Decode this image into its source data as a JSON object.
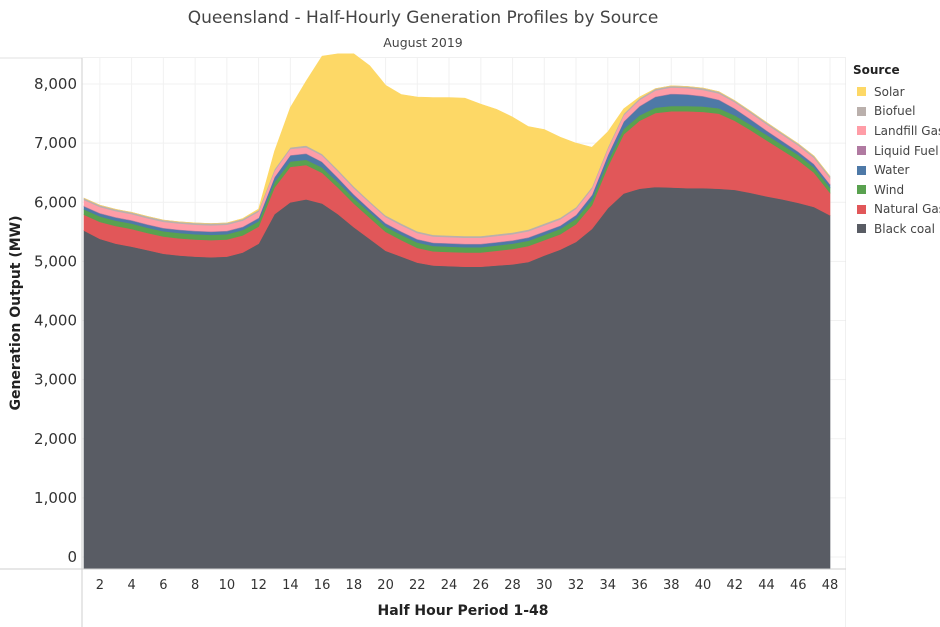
{
  "chart_data": {
    "type": "area",
    "stacked": true,
    "title": "Queensland - Half-Hourly Generation Profiles by Source",
    "subtitle": "August 2019",
    "xlabel": "Half Hour Period 1-48",
    "ylabel": "Generation Output (MW)",
    "ylim": [
      0,
      8300
    ],
    "xlim": [
      1,
      48
    ],
    "yticks": [
      0,
      1000,
      2000,
      3000,
      4000,
      5000,
      6000,
      7000,
      8000
    ],
    "ytick_labels": [
      "0",
      "1,000",
      "2,000",
      "3,000",
      "4,000",
      "5,000",
      "6,000",
      "7,000",
      "8,000"
    ],
    "xticks": [
      2,
      4,
      6,
      8,
      10,
      12,
      14,
      16,
      18,
      20,
      22,
      24,
      26,
      28,
      30,
      32,
      34,
      36,
      38,
      40,
      42,
      44,
      46,
      48
    ],
    "xtick_labels": [
      "2",
      "4",
      "6",
      "8",
      "10",
      "12",
      "14",
      "16",
      "18",
      "20",
      "22",
      "24",
      "26",
      "28",
      "30",
      "32",
      "34",
      "36",
      "38",
      "40",
      "42",
      "44",
      "46",
      "48"
    ],
    "x": [
      1,
      2,
      3,
      4,
      5,
      6,
      7,
      8,
      9,
      10,
      11,
      12,
      13,
      14,
      15,
      16,
      17,
      18,
      19,
      20,
      21,
      22,
      23,
      24,
      25,
      26,
      27,
      28,
      29,
      30,
      31,
      32,
      33,
      34,
      35,
      36,
      37,
      38,
      39,
      40,
      41,
      42,
      43,
      44,
      45,
      46,
      47,
      48
    ],
    "legend_title": "Source",
    "legend_position": "right",
    "series": [
      {
        "name": "Black coal",
        "color": "#595c64",
        "values": [
          5520,
          5380,
          5300,
          5250,
          5190,
          5130,
          5100,
          5080,
          5070,
          5080,
          5150,
          5300,
          5800,
          6000,
          6050,
          5980,
          5800,
          5580,
          5380,
          5180,
          5080,
          4980,
          4930,
          4920,
          4910,
          4910,
          4930,
          4950,
          4990,
          5100,
          5200,
          5330,
          5550,
          5900,
          6150,
          6230,
          6260,
          6250,
          6240,
          6240,
          6230,
          6210,
          6160,
          6100,
          6050,
          5990,
          5920,
          5780
        ]
      },
      {
        "name": "Natural Gas",
        "color": "#e15759",
        "values": [
          270,
          290,
          300,
          300,
          290,
          290,
          290,
          290,
          290,
          290,
          290,
          290,
          450,
          600,
          580,
          520,
          450,
          400,
          360,
          320,
          280,
          250,
          240,
          240,
          240,
          240,
          250,
          260,
          270,
          260,
          260,
          300,
          400,
          700,
          1000,
          1150,
          1250,
          1290,
          1300,
          1290,
          1270,
          1170,
          1060,
          950,
          830,
          720,
          580,
          380
        ]
      },
      {
        "name": "Wind",
        "color": "#59a14f",
        "values": [
          90,
          90,
          90,
          90,
          90,
          90,
          90,
          90,
          90,
          90,
          90,
          90,
          90,
          90,
          90,
          90,
          90,
          90,
          90,
          90,
          90,
          90,
          90,
          90,
          90,
          90,
          90,
          90,
          90,
          90,
          90,
          90,
          90,
          90,
          90,
          90,
          90,
          90,
          90,
          90,
          90,
          90,
          90,
          90,
          90,
          90,
          90,
          90
        ]
      },
      {
        "name": "Water",
        "color": "#4e79a7",
        "values": [
          50,
          50,
          50,
          50,
          50,
          50,
          50,
          50,
          50,
          50,
          50,
          50,
          80,
          100,
          100,
          90,
          70,
          60,
          50,
          50,
          50,
          50,
          50,
          50,
          50,
          50,
          50,
          50,
          50,
          50,
          50,
          60,
          80,
          100,
          120,
          150,
          180,
          200,
          190,
          170,
          140,
          110,
          90,
          70,
          60,
          50,
          50,
          50
        ]
      },
      {
        "name": "Liquid Fuel",
        "color": "#b07aa1",
        "values": [
          10,
          10,
          10,
          10,
          10,
          10,
          10,
          10,
          10,
          10,
          10,
          10,
          10,
          10,
          10,
          10,
          10,
          10,
          10,
          10,
          10,
          10,
          10,
          10,
          10,
          10,
          10,
          10,
          10,
          10,
          10,
          10,
          10,
          10,
          10,
          10,
          10,
          10,
          10,
          10,
          10,
          10,
          10,
          10,
          10,
          10,
          10,
          10
        ]
      },
      {
        "name": "Landfill Gas",
        "color": "#ff9da7",
        "values": [
          100,
          100,
          100,
          100,
          100,
          100,
          100,
          100,
          100,
          100,
          100,
          100,
          100,
          100,
          100,
          100,
          100,
          100,
          100,
          100,
          100,
          100,
          100,
          100,
          100,
          100,
          100,
          100,
          100,
          100,
          100,
          100,
          100,
          100,
          100,
          100,
          100,
          100,
          100,
          100,
          100,
          100,
          100,
          100,
          100,
          100,
          100,
          100
        ]
      },
      {
        "name": "Biofuel",
        "color": "#bab0ac",
        "values": [
          30,
          30,
          30,
          30,
          30,
          30,
          30,
          30,
          30,
          30,
          30,
          30,
          30,
          30,
          30,
          30,
          30,
          30,
          30,
          30,
          30,
          30,
          30,
          30,
          30,
          30,
          30,
          30,
          30,
          30,
          30,
          30,
          30,
          30,
          30,
          30,
          30,
          30,
          30,
          30,
          30,
          30,
          30,
          30,
          30,
          30,
          30,
          30
        ]
      },
      {
        "name": "Solar",
        "color": "#fdd866",
        "values": [
          0,
          0,
          0,
          0,
          0,
          0,
          0,
          0,
          0,
          0,
          5,
          15,
          300,
          670,
          1090,
          1650,
          1960,
          2240,
          2290,
          2200,
          2180,
          2270,
          2320,
          2330,
          2330,
          2230,
          2110,
          1950,
          1740,
          1590,
          1360,
          1080,
          670,
          260,
          80,
          20,
          0,
          0,
          0,
          0,
          0,
          0,
          0,
          0,
          0,
          0,
          0,
          0
        ]
      }
    ]
  }
}
